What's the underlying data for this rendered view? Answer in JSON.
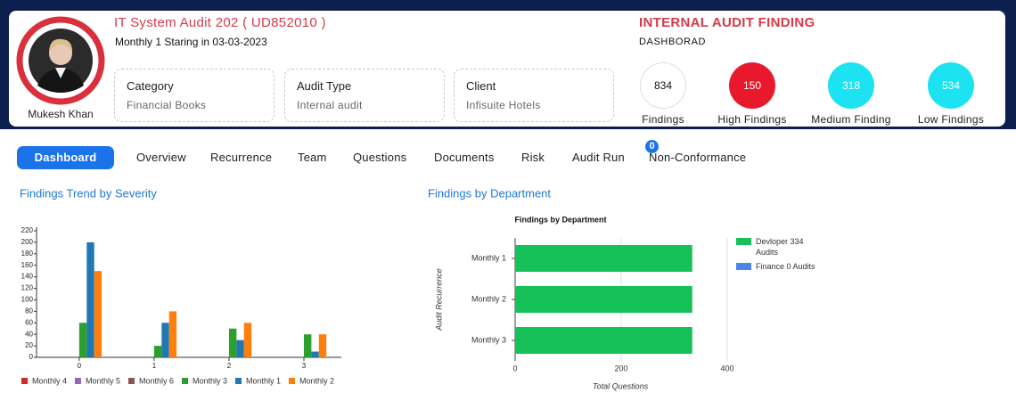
{
  "profile": {
    "name": "Mukesh Khan"
  },
  "audit": {
    "title": "IT System Audit 202 ( UD852010 )",
    "subtitle": "Monthly 1 Staring in 03-03-2023"
  },
  "info_cards": [
    {
      "label": "Category",
      "value": "Financial Books"
    },
    {
      "label": "Audit Type",
      "value": "Internal audit"
    },
    {
      "label": "Client",
      "value": "Infisuite Hotels"
    }
  ],
  "summary": {
    "title": "INTERNAL AUDIT FINDING",
    "subtitle": "DASHBORAD",
    "stats": [
      {
        "value": "834",
        "label": "Findings"
      },
      {
        "value": "150",
        "label": "High Findings"
      },
      {
        "value": "318",
        "label": "Medium Finding"
      },
      {
        "value": "534",
        "label": "Low Findings"
      }
    ]
  },
  "tabs": [
    {
      "label": "Dashboard"
    },
    {
      "label": "Overview"
    },
    {
      "label": "Recurrence"
    },
    {
      "label": "Team"
    },
    {
      "label": "Questions"
    },
    {
      "label": "Documents"
    },
    {
      "label": "Risk"
    },
    {
      "label": "Audit Run"
    },
    {
      "label": "Non-Conformance",
      "badge": "0"
    }
  ],
  "chart_data": [
    {
      "type": "bar",
      "title": "Findings Trend by Severity",
      "x": [
        0,
        1,
        2,
        3
      ],
      "xlim": [
        -0.57,
        3.5
      ],
      "xticks": [
        0,
        1,
        2,
        3
      ],
      "ylim": [
        0,
        220
      ],
      "yticks": [
        0,
        20,
        40,
        60,
        80,
        100,
        120,
        140,
        160,
        180,
        200,
        220
      ],
      "legend": "bottom",
      "series": [
        {
          "name": "Monthly 4",
          "color": "#d62728",
          "values": [
            0,
            0,
            0,
            0
          ]
        },
        {
          "name": "Monthly 5",
          "color": "#9467bd",
          "values": [
            0,
            0,
            0,
            0
          ]
        },
        {
          "name": "Monthly 6",
          "color": "#8c564b",
          "values": [
            0,
            0,
            0,
            0
          ]
        },
        {
          "name": "Monthly 3",
          "color": "#2ca02c",
          "values": [
            60,
            20,
            50,
            40
          ]
        },
        {
          "name": "Monthly 1",
          "color": "#1f77b4",
          "values": [
            200,
            60,
            30,
            10
          ]
        },
        {
          "name": "Monthly 2",
          "color": "#ff7f0e",
          "values": [
            150,
            80,
            60,
            40
          ]
        }
      ]
    },
    {
      "type": "hbar",
      "heading": "Findings by Department",
      "title": "Findings by Department",
      "categories": [
        "Monthly 1",
        "Monthly 2",
        "Monthly 3"
      ],
      "xlabel": "Total Questions",
      "ylabel": "Audit Recurrence",
      "xlim": [
        0,
        400
      ],
      "xticks": [
        0,
        200,
        400
      ],
      "grid": true,
      "legend": "right",
      "series": [
        {
          "name": "Devloper 334 Audits",
          "color": "#17c15a",
          "values": [
            334,
            334,
            334
          ]
        },
        {
          "name": "Finance 0 Audits",
          "color": "#4a86e8",
          "values": [
            0,
            0,
            0
          ]
        }
      ]
    }
  ]
}
